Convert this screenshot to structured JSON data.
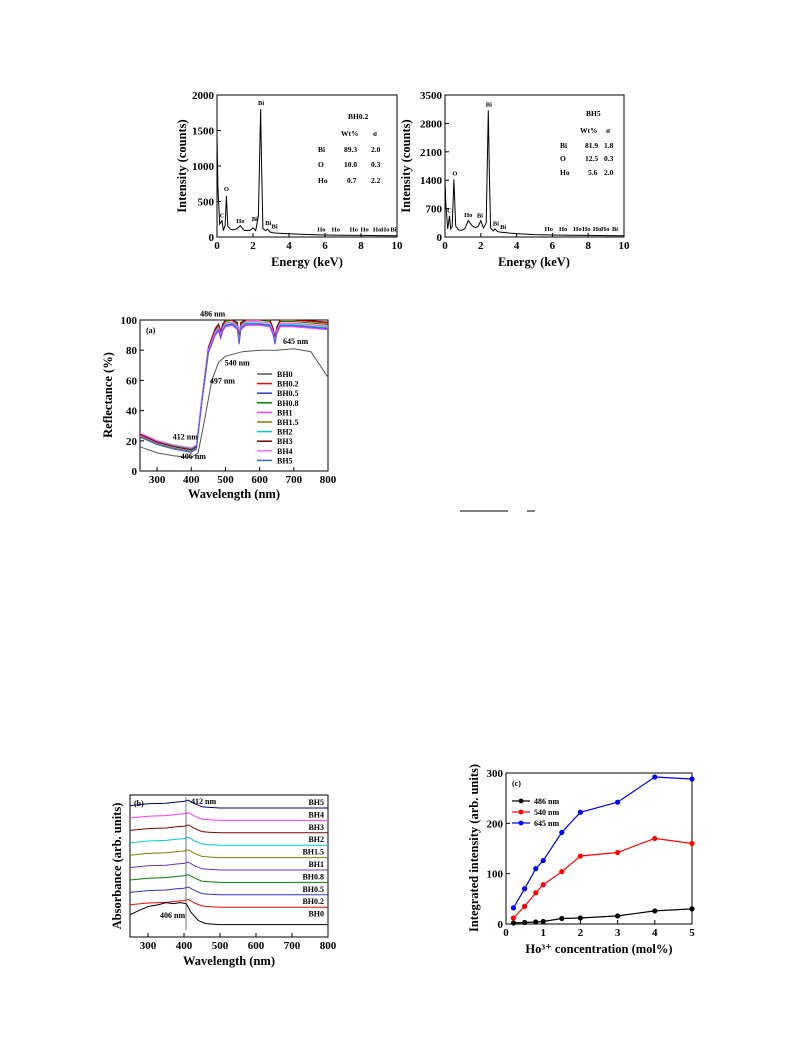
{
  "chart_data": [
    {
      "id": "eds_bh02",
      "type": "line",
      "title": "",
      "xlabel": "Energy (keV)",
      "ylabel": "Intensity (counts)",
      "xlim": [
        0,
        10
      ],
      "ylim": [
        0,
        2000
      ],
      "xticks": [
        0,
        2,
        4,
        6,
        8,
        10
      ],
      "yticks": [
        0,
        500,
        1000,
        1500,
        2000
      ],
      "x": [
        0,
        0.05,
        0.15,
        0.28,
        0.35,
        0.45,
        0.52,
        0.6,
        0.75,
        0.9,
        1.1,
        1.3,
        1.5,
        1.7,
        1.85,
        2.0,
        2.15,
        2.3,
        2.42,
        2.48,
        2.55,
        2.7,
        2.8,
        2.95,
        3.1,
        3.3,
        3.6,
        4.0,
        5.0,
        6.0,
        7.0,
        8.0,
        9.0,
        10.0
      ],
      "values": [
        1450,
        700,
        180,
        230,
        90,
        160,
        580,
        150,
        110,
        100,
        115,
        160,
        95,
        90,
        95,
        130,
        90,
        300,
        1800,
        1000,
        120,
        90,
        110,
        70,
        60,
        55,
        50,
        45,
        35,
        28,
        25,
        22,
        20,
        18
      ],
      "peak_labels": [
        {
          "text": "C",
          "x": 0.28,
          "y": 250
        },
        {
          "text": "O",
          "x": 0.52,
          "y": 620
        },
        {
          "text": "Ho",
          "x": 1.3,
          "y": 170
        },
        {
          "text": "Bi",
          "x": 2.1,
          "y": 200
        },
        {
          "text": "Bi",
          "x": 2.45,
          "y": 1830
        },
        {
          "text": "Bi",
          "x": 2.85,
          "y": 140
        },
        {
          "text": "Bi",
          "x": 3.2,
          "y": 90
        },
        {
          "text": "Ho",
          "x": 5.8,
          "y": 50
        },
        {
          "text": "Ho",
          "x": 6.6,
          "y": 50
        },
        {
          "text": "Ho",
          "x": 7.6,
          "y": 50
        },
        {
          "text": "Ho",
          "x": 8.2,
          "y": 50
        },
        {
          "text": "Ho",
          "x": 8.9,
          "y": 50
        },
        {
          "text": "Ho",
          "x": 9.35,
          "y": 50
        },
        {
          "text": "Bi",
          "x": 9.8,
          "y": 50
        }
      ],
      "table": {
        "sample": "BH0.2",
        "headers": [
          "",
          "Wt%",
          "σ"
        ],
        "rows": [
          [
            "Bi",
            "89.3",
            "2.0"
          ],
          [
            "O",
            "10.0",
            "0.3"
          ],
          [
            "Ho",
            "0.7",
            "2.2"
          ]
        ]
      },
      "line_color": "#000000"
    },
    {
      "id": "eds_bh5",
      "type": "line",
      "title": "",
      "xlabel": "Energy (keV)",
      "ylabel": "Intensity (counts)",
      "xlim": [
        0,
        10
      ],
      "ylim": [
        0,
        3500
      ],
      "xticks": [
        0,
        2,
        4,
        6,
        8,
        10
      ],
      "yticks": [
        0,
        700,
        1400,
        2100,
        2800,
        3500
      ],
      "x": [
        0,
        0.05,
        0.15,
        0.25,
        0.32,
        0.4,
        0.5,
        0.6,
        0.75,
        0.9,
        1.1,
        1.3,
        1.5,
        1.7,
        1.85,
        2.0,
        2.15,
        2.3,
        2.42,
        2.48,
        2.55,
        2.7,
        2.8,
        2.95,
        3.1,
        3.3,
        3.6,
        4.0,
        5.0,
        6.0,
        7.0,
        8.0,
        9.0,
        10.0
      ],
      "values": [
        1400,
        800,
        200,
        520,
        200,
        260,
        1420,
        270,
        180,
        160,
        200,
        410,
        280,
        230,
        260,
        400,
        220,
        350,
        3120,
        1500,
        220,
        150,
        200,
        130,
        120,
        110,
        95,
        85,
        60,
        50,
        45,
        40,
        35,
        30
      ],
      "peak_labels": [
        {
          "text": "C",
          "x": 0.25,
          "y": 560
        },
        {
          "text": "O",
          "x": 0.55,
          "y": 1470
        },
        {
          "text": "Ho",
          "x": 1.3,
          "y": 440
        },
        {
          "text": "Bi",
          "x": 1.95,
          "y": 430
        },
        {
          "text": "Bi",
          "x": 2.45,
          "y": 3170
        },
        {
          "text": "Bi",
          "x": 2.85,
          "y": 230
        },
        {
          "text": "Bi",
          "x": 3.25,
          "y": 150
        },
        {
          "text": "Ho",
          "x": 5.8,
          "y": 100
        },
        {
          "text": "Ho",
          "x": 6.6,
          "y": 100
        },
        {
          "text": "Ho",
          "x": 7.4,
          "y": 100
        },
        {
          "text": "Ho",
          "x": 7.9,
          "y": 100
        },
        {
          "text": "Ho",
          "x": 8.5,
          "y": 100
        },
        {
          "text": "Ho",
          "x": 8.95,
          "y": 100
        },
        {
          "text": "Bi",
          "x": 9.5,
          "y": 100
        }
      ],
      "table": {
        "sample": "BH5",
        "headers": [
          "",
          "Wt%",
          "σ"
        ],
        "rows": [
          [
            "Bi",
            "81.9",
            "1.8"
          ],
          [
            "O",
            "12.5",
            "0.3"
          ],
          [
            "Ho",
            "5.6",
            "2.0"
          ]
        ]
      },
      "line_color": "#000000"
    },
    {
      "id": "reflectance",
      "type": "line",
      "panel": "(a)",
      "title": "",
      "xlabel": "Wavelength (nm)",
      "ylabel": "Reflectance (%)",
      "xlim": [
        250,
        800
      ],
      "ylim": [
        0,
        100
      ],
      "xticks": [
        300,
        400,
        500,
        600,
        700,
        800
      ],
      "yticks": [
        0,
        20,
        40,
        60,
        80,
        100
      ],
      "annotations": [
        {
          "text": "486 nm",
          "x": 486,
          "y": 97
        },
        {
          "text": "645 nm",
          "x": 645,
          "y": 84
        },
        {
          "text": "540 nm",
          "x": 540,
          "y": 70
        },
        {
          "text": "497 nm",
          "x": 497,
          "y": 58
        },
        {
          "text": "412 nm",
          "x": 412,
          "y": 17
        },
        {
          "text": "406 nm",
          "x": 406,
          "y": 8
        }
      ],
      "legend_position": "right",
      "series": [
        {
          "name": "BH0",
          "color": "#555555",
          "x": [
            250,
            300,
            350,
            400,
            420,
            440,
            460,
            480,
            500,
            550,
            600,
            650,
            700,
            750,
            800
          ],
          "values": [
            16,
            12,
            10,
            9,
            12,
            35,
            60,
            72,
            76,
            79,
            80,
            80,
            81,
            79,
            62
          ]
        },
        {
          "name": "BH0.2",
          "color": "#ff0000"
        },
        {
          "name": "BH0.5",
          "color": "#3333cc"
        },
        {
          "name": "BH0.8",
          "color": "#008000"
        },
        {
          "name": "BH1",
          "color": "#ff33ff"
        },
        {
          "name": "BH1.5",
          "color": "#808000"
        },
        {
          "name": "BH2",
          "color": "#00cccc"
        },
        {
          "name": "BH3",
          "color": "#800000"
        },
        {
          "name": "BH4",
          "color": "#ff66ff"
        },
        {
          "name": "BH5",
          "color": "#3366ff"
        }
      ],
      "doped_profile": {
        "x": [
          250,
          300,
          350,
          400,
          415,
          430,
          450,
          470,
          480,
          486,
          492,
          500,
          520,
          535,
          540,
          545,
          560,
          600,
          630,
          640,
          645,
          650,
          660,
          700,
          750,
          800
        ],
        "values": [
          24,
          19,
          16,
          14,
          16,
          45,
          80,
          92,
          95,
          90,
          95,
          98,
          99,
          96,
          86,
          96,
          99,
          99,
          98,
          92,
          86,
          93,
          98,
          98,
          97,
          96
        ]
      }
    },
    {
      "id": "absorbance",
      "type": "line",
      "panel": "(b)",
      "title": "",
      "xlabel": "Wavelength (nm)",
      "ylabel": "Absorbance (arb. units)",
      "xlim": [
        250,
        800
      ],
      "xticks": [
        300,
        400,
        500,
        600,
        700,
        800
      ],
      "annotations": [
        {
          "text": "412 nm",
          "x": 412
        },
        {
          "text": "406 nm",
          "x": 406
        }
      ],
      "series": [
        {
          "name": "BH5",
          "color": "#000080"
        },
        {
          "name": "BH4",
          "color": "#ff33ff"
        },
        {
          "name": "BH3",
          "color": "#800000"
        },
        {
          "name": "BH2",
          "color": "#00cccc"
        },
        {
          "name": "BH1.5",
          "color": "#808000"
        },
        {
          "name": "BH1",
          "color": "#6633cc"
        },
        {
          "name": "BH0.8",
          "color": "#008000"
        },
        {
          "name": "BH0.5",
          "color": "#3333cc"
        },
        {
          "name": "BH0.2",
          "color": "#ff0000"
        },
        {
          "name": "BH0",
          "color": "#000000"
        }
      ]
    },
    {
      "id": "integrated",
      "type": "line",
      "panel": "(c)",
      "title": "",
      "xlabel": "Ho³⁺ concentration (mol%)",
      "ylabel": "Integrated intensity (arb. units)",
      "xlim": [
        0,
        5
      ],
      "ylim": [
        0,
        300
      ],
      "xticks": [
        0,
        1,
        2,
        3,
        4,
        5
      ],
      "yticks": [
        0,
        100,
        200,
        300
      ],
      "legend_position": "top-left",
      "x": [
        0.2,
        0.5,
        0.8,
        1,
        1.5,
        2,
        3,
        4,
        5
      ],
      "series": [
        {
          "name": "486 nm",
          "color": "#000000",
          "values": [
            2,
            3,
            4,
            5,
            11,
            12,
            16,
            26,
            30
          ]
        },
        {
          "name": "540 nm",
          "color": "#ff0000",
          "values": [
            12,
            35,
            62,
            78,
            104,
            135,
            142,
            170,
            160
          ]
        },
        {
          "name": "645 nm",
          "color": "#0000ff",
          "values": [
            32,
            70,
            110,
            126,
            182,
            222,
            242,
            292,
            288
          ]
        }
      ]
    }
  ]
}
